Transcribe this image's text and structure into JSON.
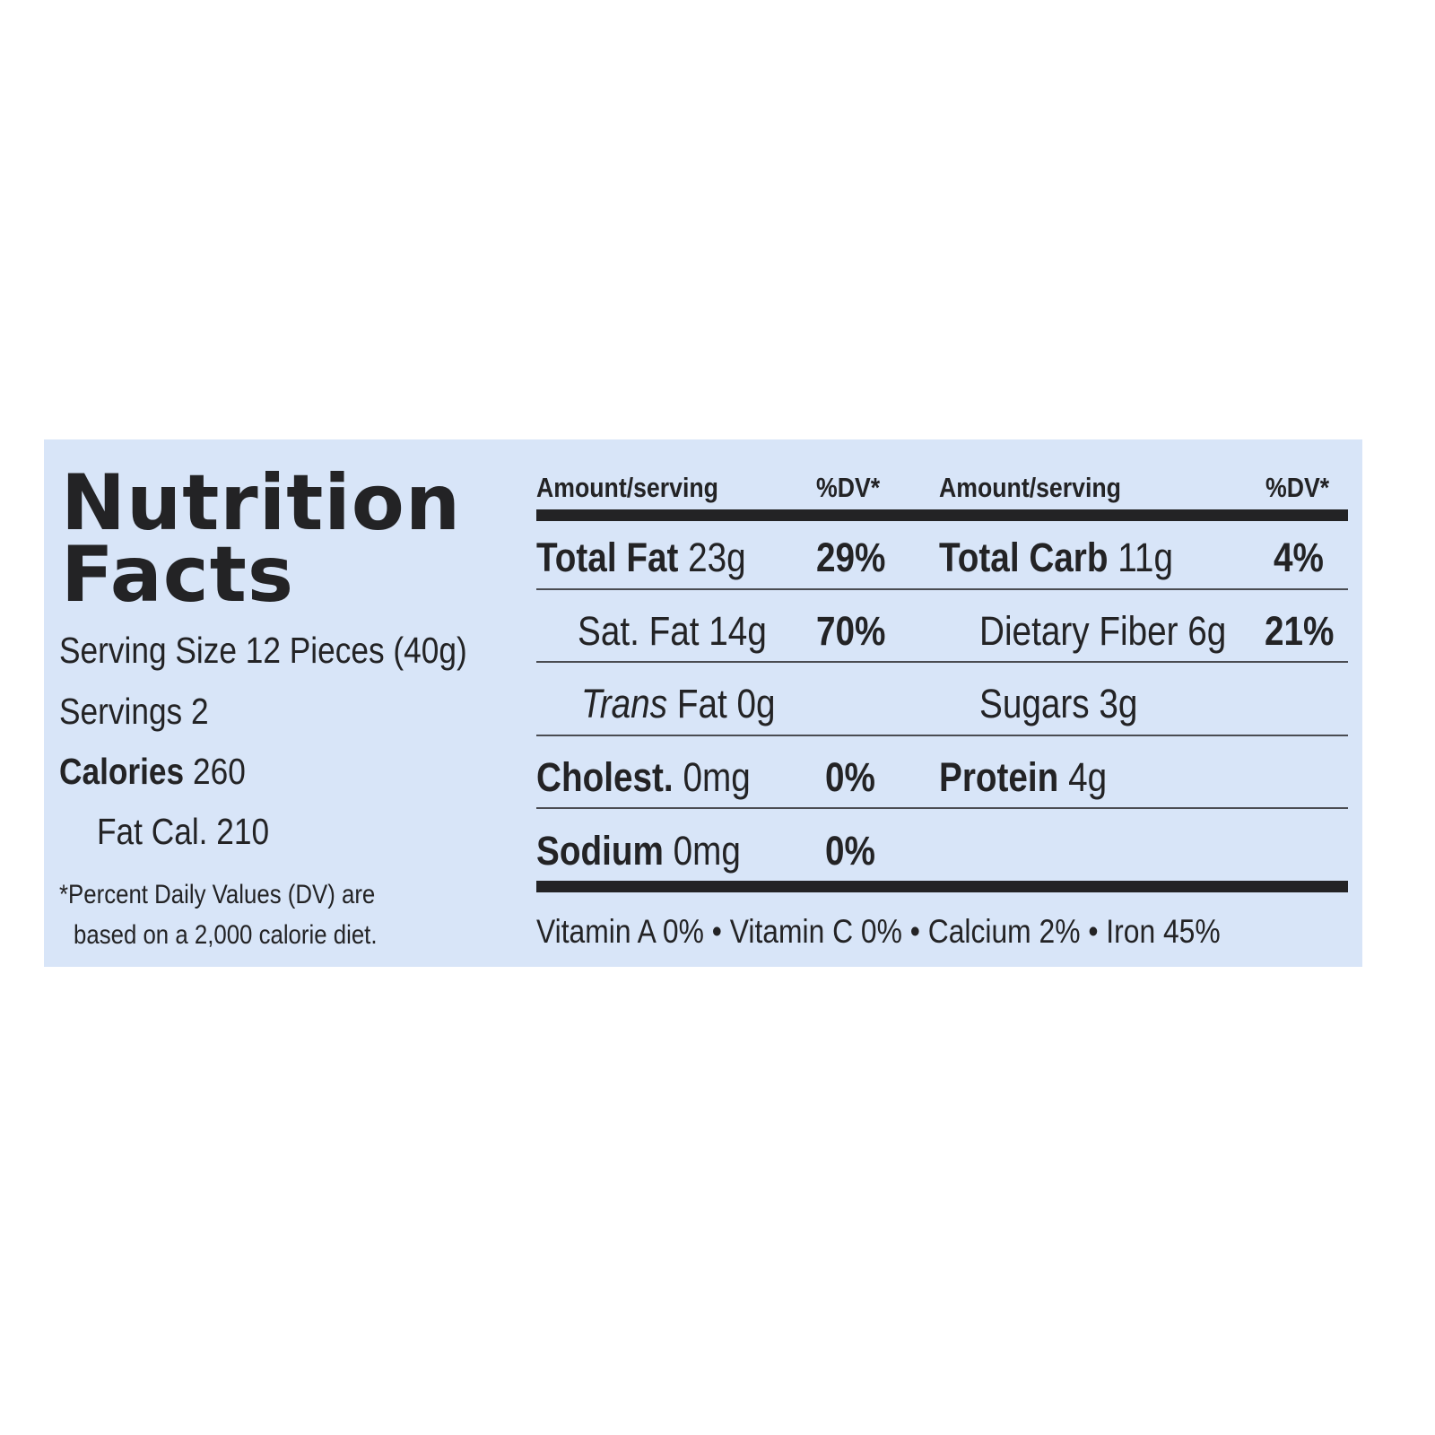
{
  "title_line1": "Nutrition",
  "title_line2": "Facts",
  "serving_size": "Serving Size 12 Pieces (40g)",
  "servings": "Servings 2",
  "calories_label": "Calories",
  "calories_value": "260",
  "fat_cal": "Fat Cal. 210",
  "footnote_line1": "*Percent Daily Values (DV) are",
  "footnote_line2": "based on a 2,000 calorie diet.",
  "header": {
    "amount1": "Amount/serving",
    "dv1": "%DV*",
    "amount2": "Amount/serving",
    "dv2": "%DV*"
  },
  "left_rows": [
    {
      "label": "Total Fat",
      "value": "23g",
      "dv": "29%"
    },
    {
      "label": "Sat. Fat",
      "value": "14g",
      "dv": "70%"
    },
    {
      "label": "Trans",
      "label_rest": "Fat",
      "value": "0g",
      "dv": ""
    },
    {
      "label": "Cholest.",
      "value": "0mg",
      "dv": "0%"
    },
    {
      "label": "Sodium",
      "value": "0mg",
      "dv": "0%"
    }
  ],
  "right_rows": [
    {
      "label": "Total Carb",
      "value": "11g",
      "dv": "4%"
    },
    {
      "label": "Dietary Fiber",
      "value": "6g",
      "dv": "21%"
    },
    {
      "label": "Sugars",
      "value": "3g",
      "dv": ""
    },
    {
      "label": "Protein",
      "value": "4g",
      "dv": ""
    }
  ],
  "vitamins": "Vitamin A 0% • Vitamin C 0% • Calcium 2% • Iron 45%",
  "colors": {
    "background": "#d8e5f8",
    "text": "#232325"
  }
}
